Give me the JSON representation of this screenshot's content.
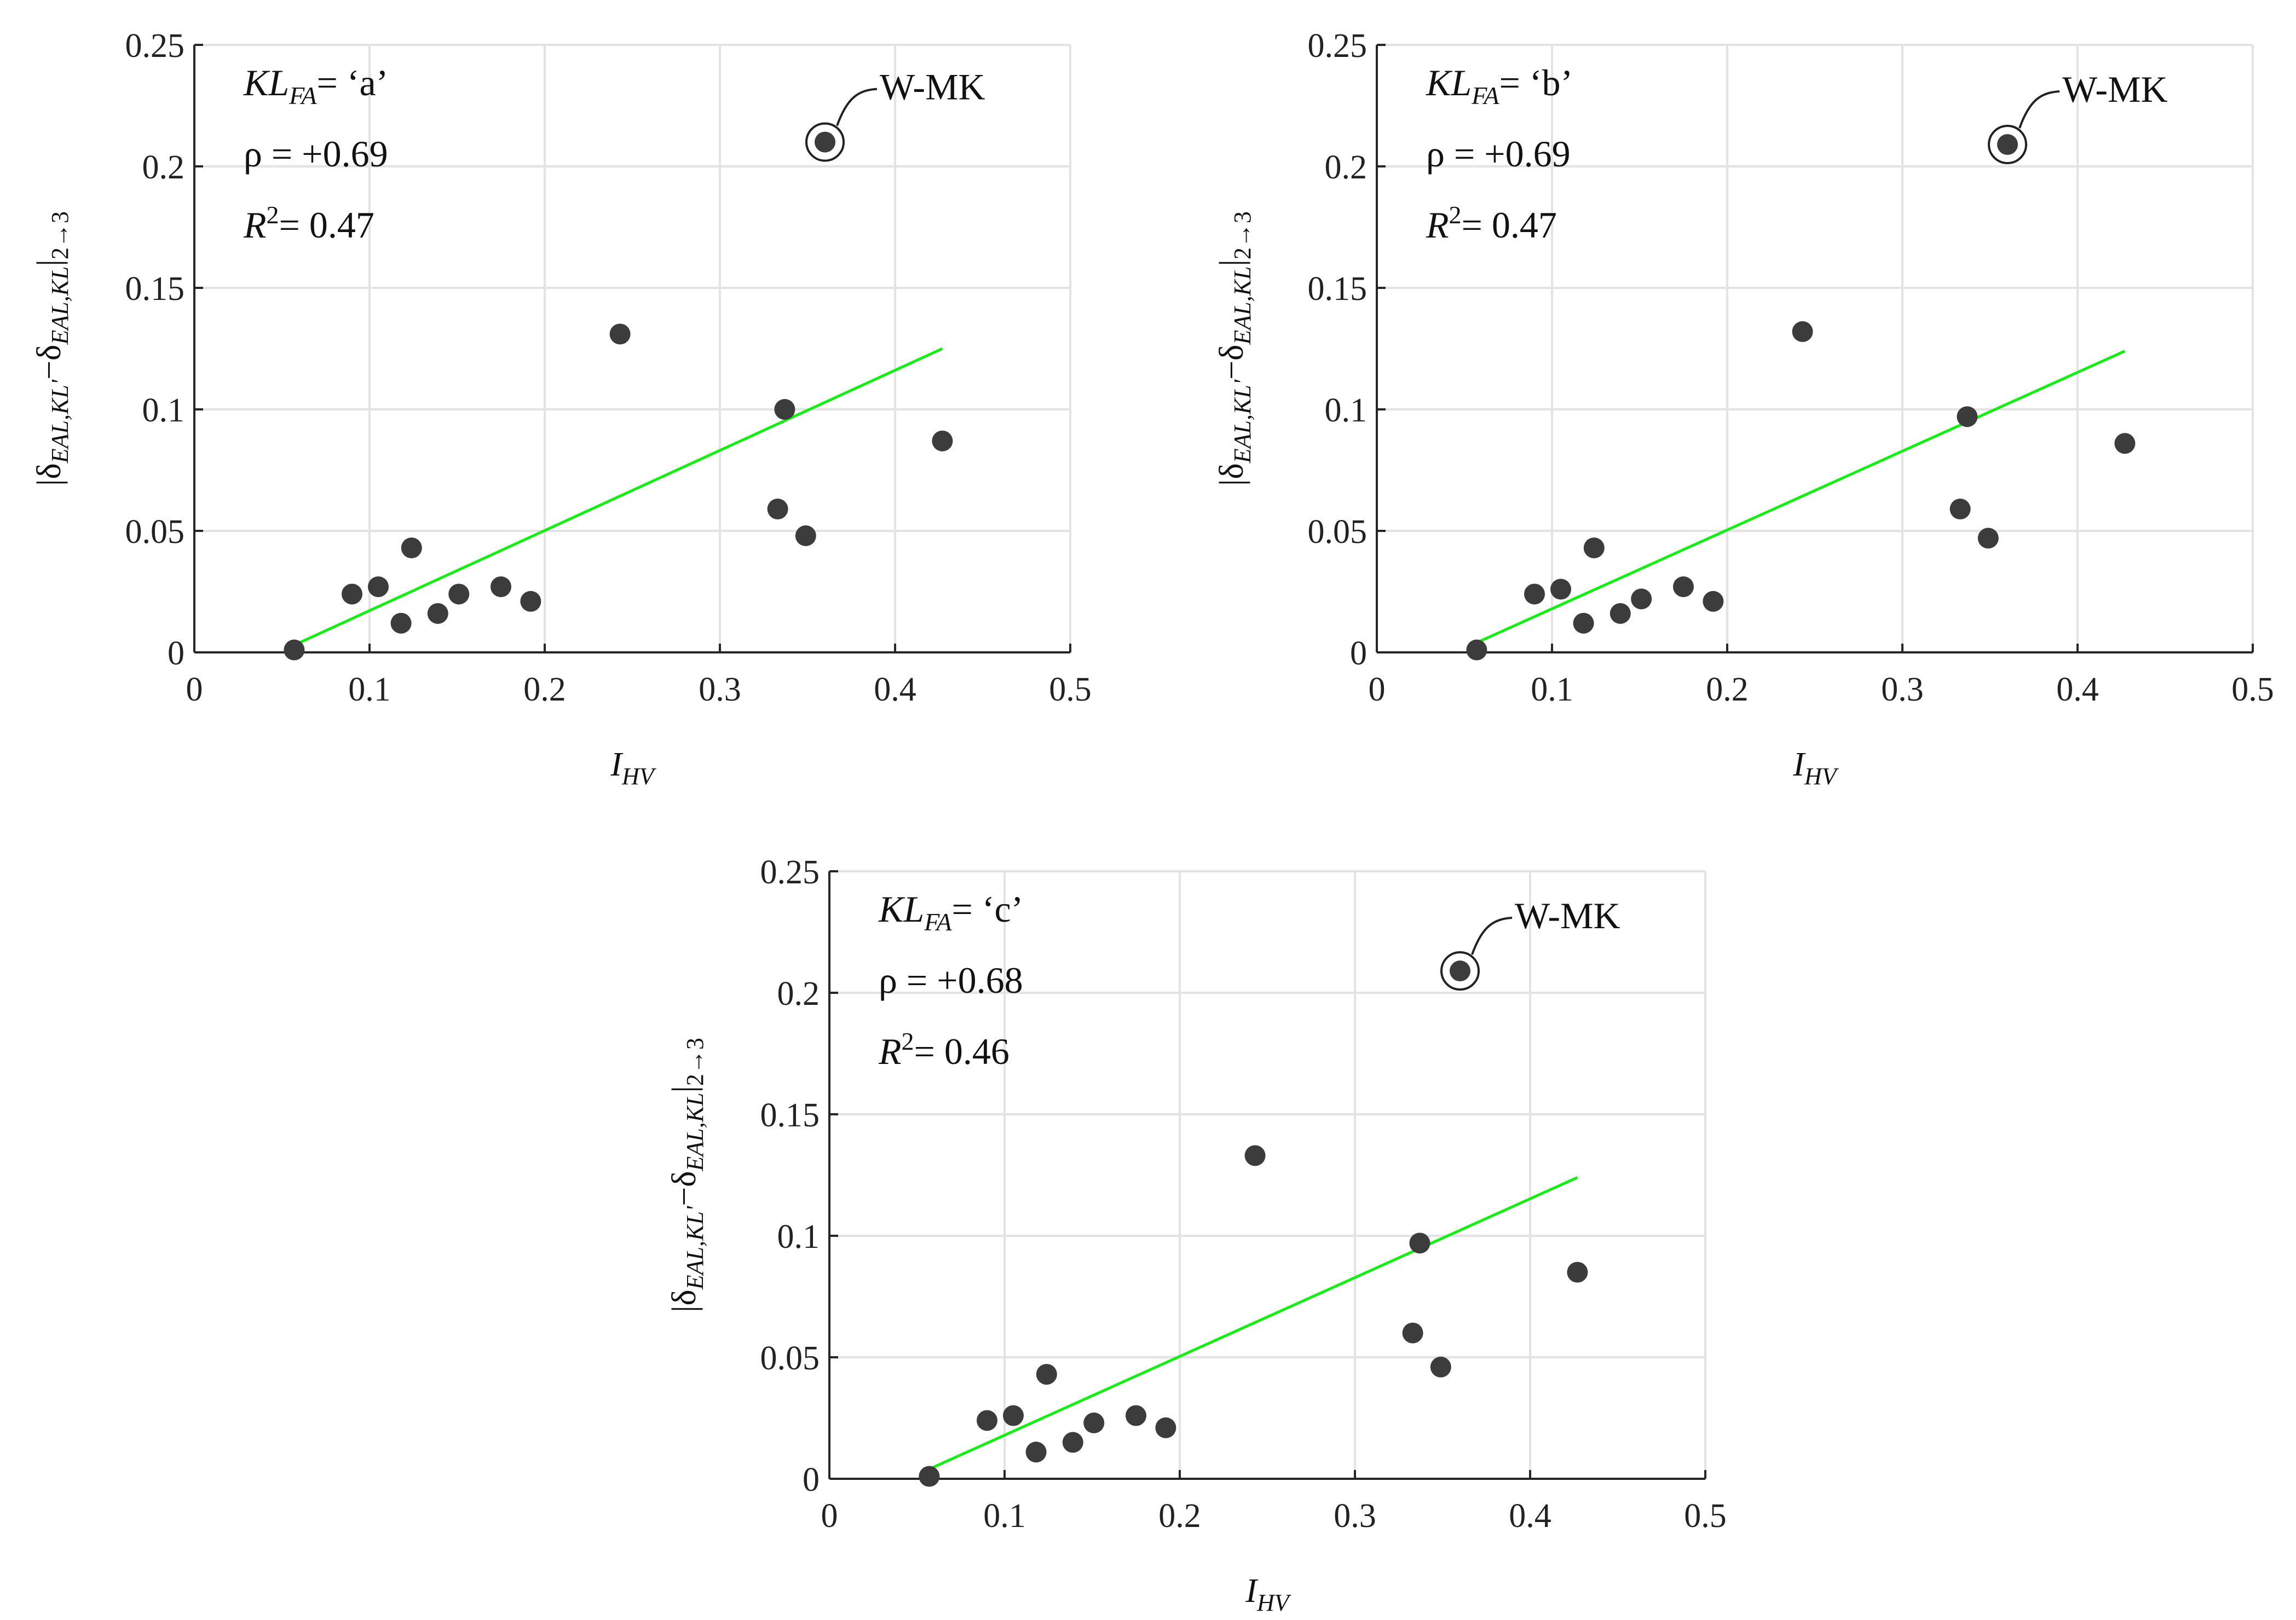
{
  "chart_data": [
    {
      "type": "scatter",
      "panel": "a",
      "xlabel_main": "I",
      "xlabel_sub": "HV",
      "ylabel": "|δ_EAL,KL' − δ_EAL,KL|_2→3",
      "xlim": [
        0,
        0.5
      ],
      "ylim": [
        0,
        0.25
      ],
      "xticks": [
        "0",
        "0.1",
        "0.2",
        "0.3",
        "0.4",
        "0.5"
      ],
      "yticks": [
        "0",
        "0.05",
        "0.1",
        "0.15",
        "0.2",
        "0.25"
      ],
      "x": [
        0.057,
        0.09,
        0.105,
        0.118,
        0.124,
        0.139,
        0.151,
        0.175,
        0.192,
        0.243,
        0.333,
        0.337,
        0.349,
        0.427,
        0.36
      ],
      "y": [
        0.001,
        0.024,
        0.027,
        0.012,
        0.043,
        0.016,
        0.024,
        0.027,
        0.021,
        0.131,
        0.059,
        0.1,
        0.048,
        0.087,
        0.21
      ],
      "fit_line": {
        "x": [
          0.057,
          0.427
        ],
        "y": [
          0.003,
          0.125
        ]
      },
      "highlight": {
        "label": "W-MK",
        "x": 0.36,
        "y": 0.21
      },
      "annotation": {
        "kl_main": "KL",
        "kl_sub": "FA",
        "kl_value": "= ‘a’",
        "rho": "ρ = +0.69",
        "r2_main": "R",
        "r2_sup": "2",
        "r2_value": "= 0.47"
      }
    },
    {
      "type": "scatter",
      "panel": "b",
      "xlabel_main": "I",
      "xlabel_sub": "HV",
      "ylabel": "|δ_EAL,KL' − δ_EAL,KL|_2→3",
      "xlim": [
        0,
        0.5
      ],
      "ylim": [
        0,
        0.25
      ],
      "xticks": [
        "0",
        "0.1",
        "0.2",
        "0.3",
        "0.4",
        "0.5"
      ],
      "yticks": [
        "0",
        "0.05",
        "0.1",
        "0.15",
        "0.2",
        "0.25"
      ],
      "x": [
        0.057,
        0.09,
        0.105,
        0.118,
        0.124,
        0.139,
        0.151,
        0.175,
        0.192,
        0.243,
        0.333,
        0.337,
        0.349,
        0.427,
        0.36
      ],
      "y": [
        0.001,
        0.024,
        0.026,
        0.012,
        0.043,
        0.016,
        0.022,
        0.027,
        0.021,
        0.132,
        0.059,
        0.097,
        0.047,
        0.086,
        0.209
      ],
      "fit_line": {
        "x": [
          0.057,
          0.427
        ],
        "y": [
          0.004,
          0.124
        ]
      },
      "highlight": {
        "label": "W-MK",
        "x": 0.36,
        "y": 0.209
      },
      "annotation": {
        "kl_main": "KL",
        "kl_sub": "FA",
        "kl_value": "= ‘b’",
        "rho": "ρ = +0.69",
        "r2_main": "R",
        "r2_sup": "2",
        "r2_value": "= 0.47"
      }
    },
    {
      "type": "scatter",
      "panel": "c",
      "xlabel_main": "I",
      "xlabel_sub": "HV",
      "ylabel": "|δ_EAL,KL' − δ_EAL,KL|_2→3",
      "xlim": [
        0,
        0.5
      ],
      "ylim": [
        0,
        0.25
      ],
      "xticks": [
        "0",
        "0.1",
        "0.2",
        "0.3",
        "0.4",
        "0.5"
      ],
      "yticks": [
        "0",
        "0.05",
        "0.1",
        "0.15",
        "0.2",
        "0.25"
      ],
      "x": [
        0.057,
        0.09,
        0.105,
        0.118,
        0.124,
        0.139,
        0.151,
        0.175,
        0.192,
        0.243,
        0.333,
        0.337,
        0.349,
        0.427,
        0.36
      ],
      "y": [
        0.001,
        0.024,
        0.026,
        0.011,
        0.043,
        0.015,
        0.023,
        0.026,
        0.021,
        0.133,
        0.06,
        0.097,
        0.046,
        0.085,
        0.209
      ],
      "fit_line": {
        "x": [
          0.057,
          0.427
        ],
        "y": [
          0.004,
          0.124
        ]
      },
      "highlight": {
        "label": "W-MK",
        "x": 0.36,
        "y": 0.209
      },
      "annotation": {
        "kl_main": "KL",
        "kl_sub": "FA",
        "kl_value": "= ‘c’",
        "rho": "ρ = +0.68",
        "r2_main": "R",
        "r2_sup": "2",
        "r2_value": "= 0.46"
      }
    }
  ]
}
